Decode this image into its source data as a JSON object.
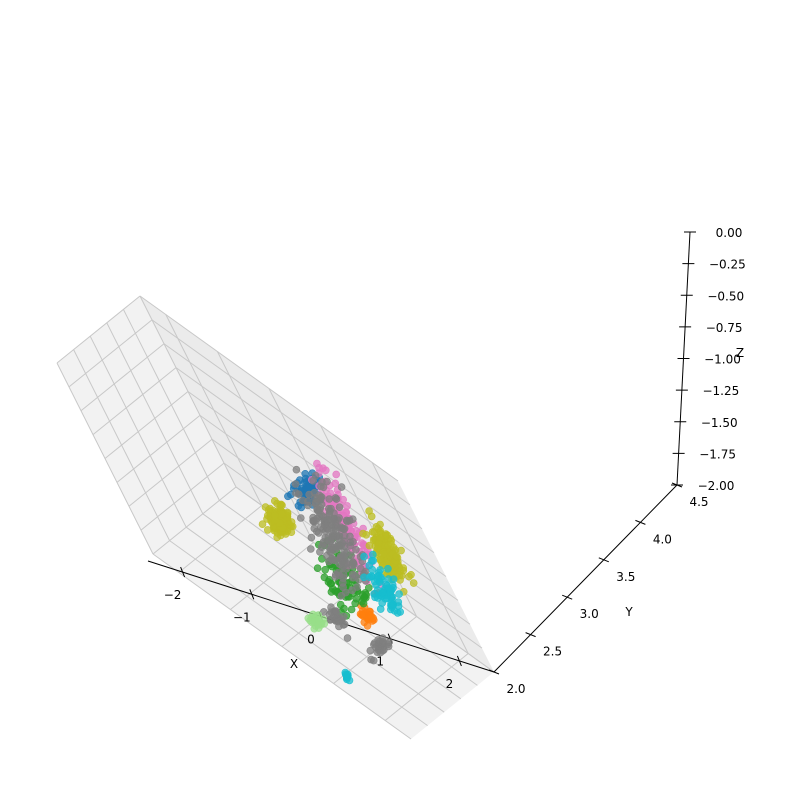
{
  "chart_data": {
    "type": "scatter3d",
    "title": "",
    "xlabel": "X",
    "ylabel": "Y",
    "zlabel": "Z",
    "xlim": [
      -2.5,
      2.5
    ],
    "ylim": [
      2.0,
      4.5
    ],
    "zlim": [
      -2.0,
      0.0
    ],
    "x_ticks": [
      -2,
      -1,
      0,
      1,
      2
    ],
    "y_ticks": [
      2.0,
      2.5,
      3.0,
      3.5,
      4.0,
      4.5
    ],
    "z_ticks": [
      0.0,
      -0.25,
      -0.5,
      -0.75,
      -1.0,
      -1.25,
      -1.5,
      -1.75,
      -2.0
    ],
    "x_tick_labels": [
      "−2",
      "−1",
      "0",
      "1",
      "2"
    ],
    "y_tick_labels": [
      "2.0",
      "2.5",
      "3.0",
      "3.5",
      "4.0",
      "4.5"
    ],
    "z_tick_labels": [
      "0.00",
      "−0.25",
      "−0.50",
      "−0.75",
      "−1.00",
      "−1.25",
      "−1.50",
      "−1.75",
      "−2.00"
    ],
    "grid": true,
    "legend": false,
    "series": [
      {
        "color": "#1f77b4",
        "clusters": [
          {
            "x": -0.1,
            "y": 4.3,
            "z": -1.05,
            "sx": 0.05,
            "sy": 0.25,
            "sz": 0.08,
            "n": 70
          }
        ]
      },
      {
        "color": "#ff7f0e",
        "clusters": [
          {
            "x": 0.55,
            "y": 3.75,
            "z": -1.95,
            "sx": 0.05,
            "sy": 0.12,
            "sz": 0.05,
            "n": 30
          }
        ]
      },
      {
        "color": "#2ca02c",
        "clusters": [
          {
            "x": 0.3,
            "y": 3.8,
            "z": -1.7,
            "sx": 0.08,
            "sy": 0.3,
            "sz": 0.25,
            "n": 90
          }
        ]
      },
      {
        "color": "#e377c2",
        "clusters": [
          {
            "x": 0.7,
            "y": 4.15,
            "z": -1.05,
            "sx": 0.06,
            "sy": 0.2,
            "sz": 0.4,
            "n": 120
          }
        ]
      },
      {
        "color": "#7f7f7f",
        "clusters": [
          {
            "x": 0.25,
            "y": 4.1,
            "z": -1.3,
            "sx": 0.08,
            "sy": 0.35,
            "sz": 0.4,
            "n": 180
          },
          {
            "x": 0.4,
            "y": 3.2,
            "z": -1.88,
            "sx": 0.12,
            "sy": 0.1,
            "sz": 0.06,
            "n": 30
          },
          {
            "x": 1.1,
            "y": 3.3,
            "z": -1.95,
            "sx": 0.06,
            "sy": 0.2,
            "sz": 0.04,
            "n": 25
          }
        ]
      },
      {
        "color": "#bcbd22",
        "clusters": [
          {
            "x": -0.5,
            "y": 3.65,
            "z": -1.35,
            "sx": 0.08,
            "sy": 0.2,
            "sz": 0.1,
            "n": 140
          },
          {
            "x": 1.35,
            "y": 4.3,
            "z": -1.15,
            "sx": 0.07,
            "sy": 0.18,
            "sz": 0.22,
            "n": 150
          }
        ]
      },
      {
        "color": "#17becf",
        "clusters": [
          {
            "x": 1.1,
            "y": 4.05,
            "z": -1.55,
            "sx": 0.08,
            "sy": 0.2,
            "sz": 0.2,
            "n": 70
          },
          {
            "x": 1.15,
            "y": 2.25,
            "z": -1.95,
            "sx": 0.04,
            "sy": 0.06,
            "sz": 0.05,
            "n": 10
          }
        ]
      },
      {
        "color": "#98df8a",
        "clusters": [
          {
            "x": 0.2,
            "y": 2.85,
            "z": -1.9,
            "sx": 0.1,
            "sy": 0.12,
            "sz": 0.03,
            "n": 24
          }
        ]
      }
    ]
  }
}
